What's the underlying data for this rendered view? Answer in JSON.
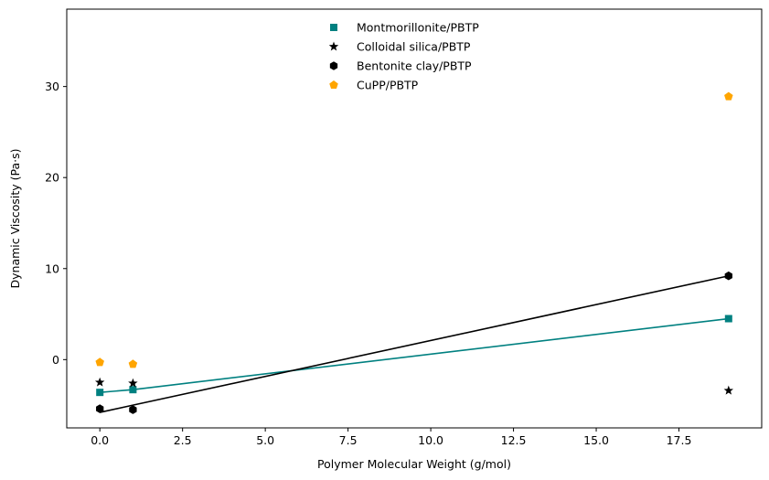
{
  "chart_data": {
    "type": "scatter",
    "title": "",
    "xlabel": "Polymer Molecular Weight (g/mol)",
    "ylabel": "Dynamic Viscosity (Pa·s)",
    "xlim": [
      -1.0,
      20.0
    ],
    "ylim": [
      -7.5,
      38.5
    ],
    "xticks": [
      0.0,
      2.5,
      5.0,
      7.5,
      10.0,
      12.5,
      15.0,
      17.5
    ],
    "xtick_labels": [
      "0.0",
      "2.5",
      "5.0",
      "7.5",
      "10.0",
      "12.5",
      "15.0",
      "17.5"
    ],
    "yticks": [
      0,
      10,
      20,
      30
    ],
    "ytick_labels": [
      "0",
      "10",
      "20",
      "30"
    ],
    "grid": false,
    "legend_position": "top-center",
    "series": [
      {
        "name": "Montmorillonite/PBTP",
        "marker": "square",
        "color": "#008080",
        "x": [
          0,
          1,
          19
        ],
        "y": [
          -3.6,
          -3.3,
          4.5
        ],
        "fit_line": {
          "x": [
            0,
            1,
            19
          ],
          "y": [
            -3.6,
            -3.3,
            4.5
          ]
        }
      },
      {
        "name": "Colloidal silica/PBTP",
        "marker": "star",
        "color": "#000000",
        "x": [
          0,
          1,
          19
        ],
        "y": [
          -2.5,
          -2.6,
          -3.4
        ]
      },
      {
        "name": "Bentonite clay/PBTP",
        "marker": "hexagon",
        "color": "#000000",
        "x": [
          0,
          1,
          19
        ],
        "y": [
          -5.4,
          -5.5,
          9.2
        ],
        "fit_line": {
          "x": [
            0,
            1,
            19
          ],
          "y": [
            -5.8,
            -5.0,
            9.2
          ]
        }
      },
      {
        "name": "CuPP/PBTP",
        "marker": "pentagon",
        "color": "#FFA500",
        "x": [
          0,
          1,
          19
        ],
        "y": [
          -0.3,
          -0.5,
          28.9
        ]
      }
    ]
  }
}
